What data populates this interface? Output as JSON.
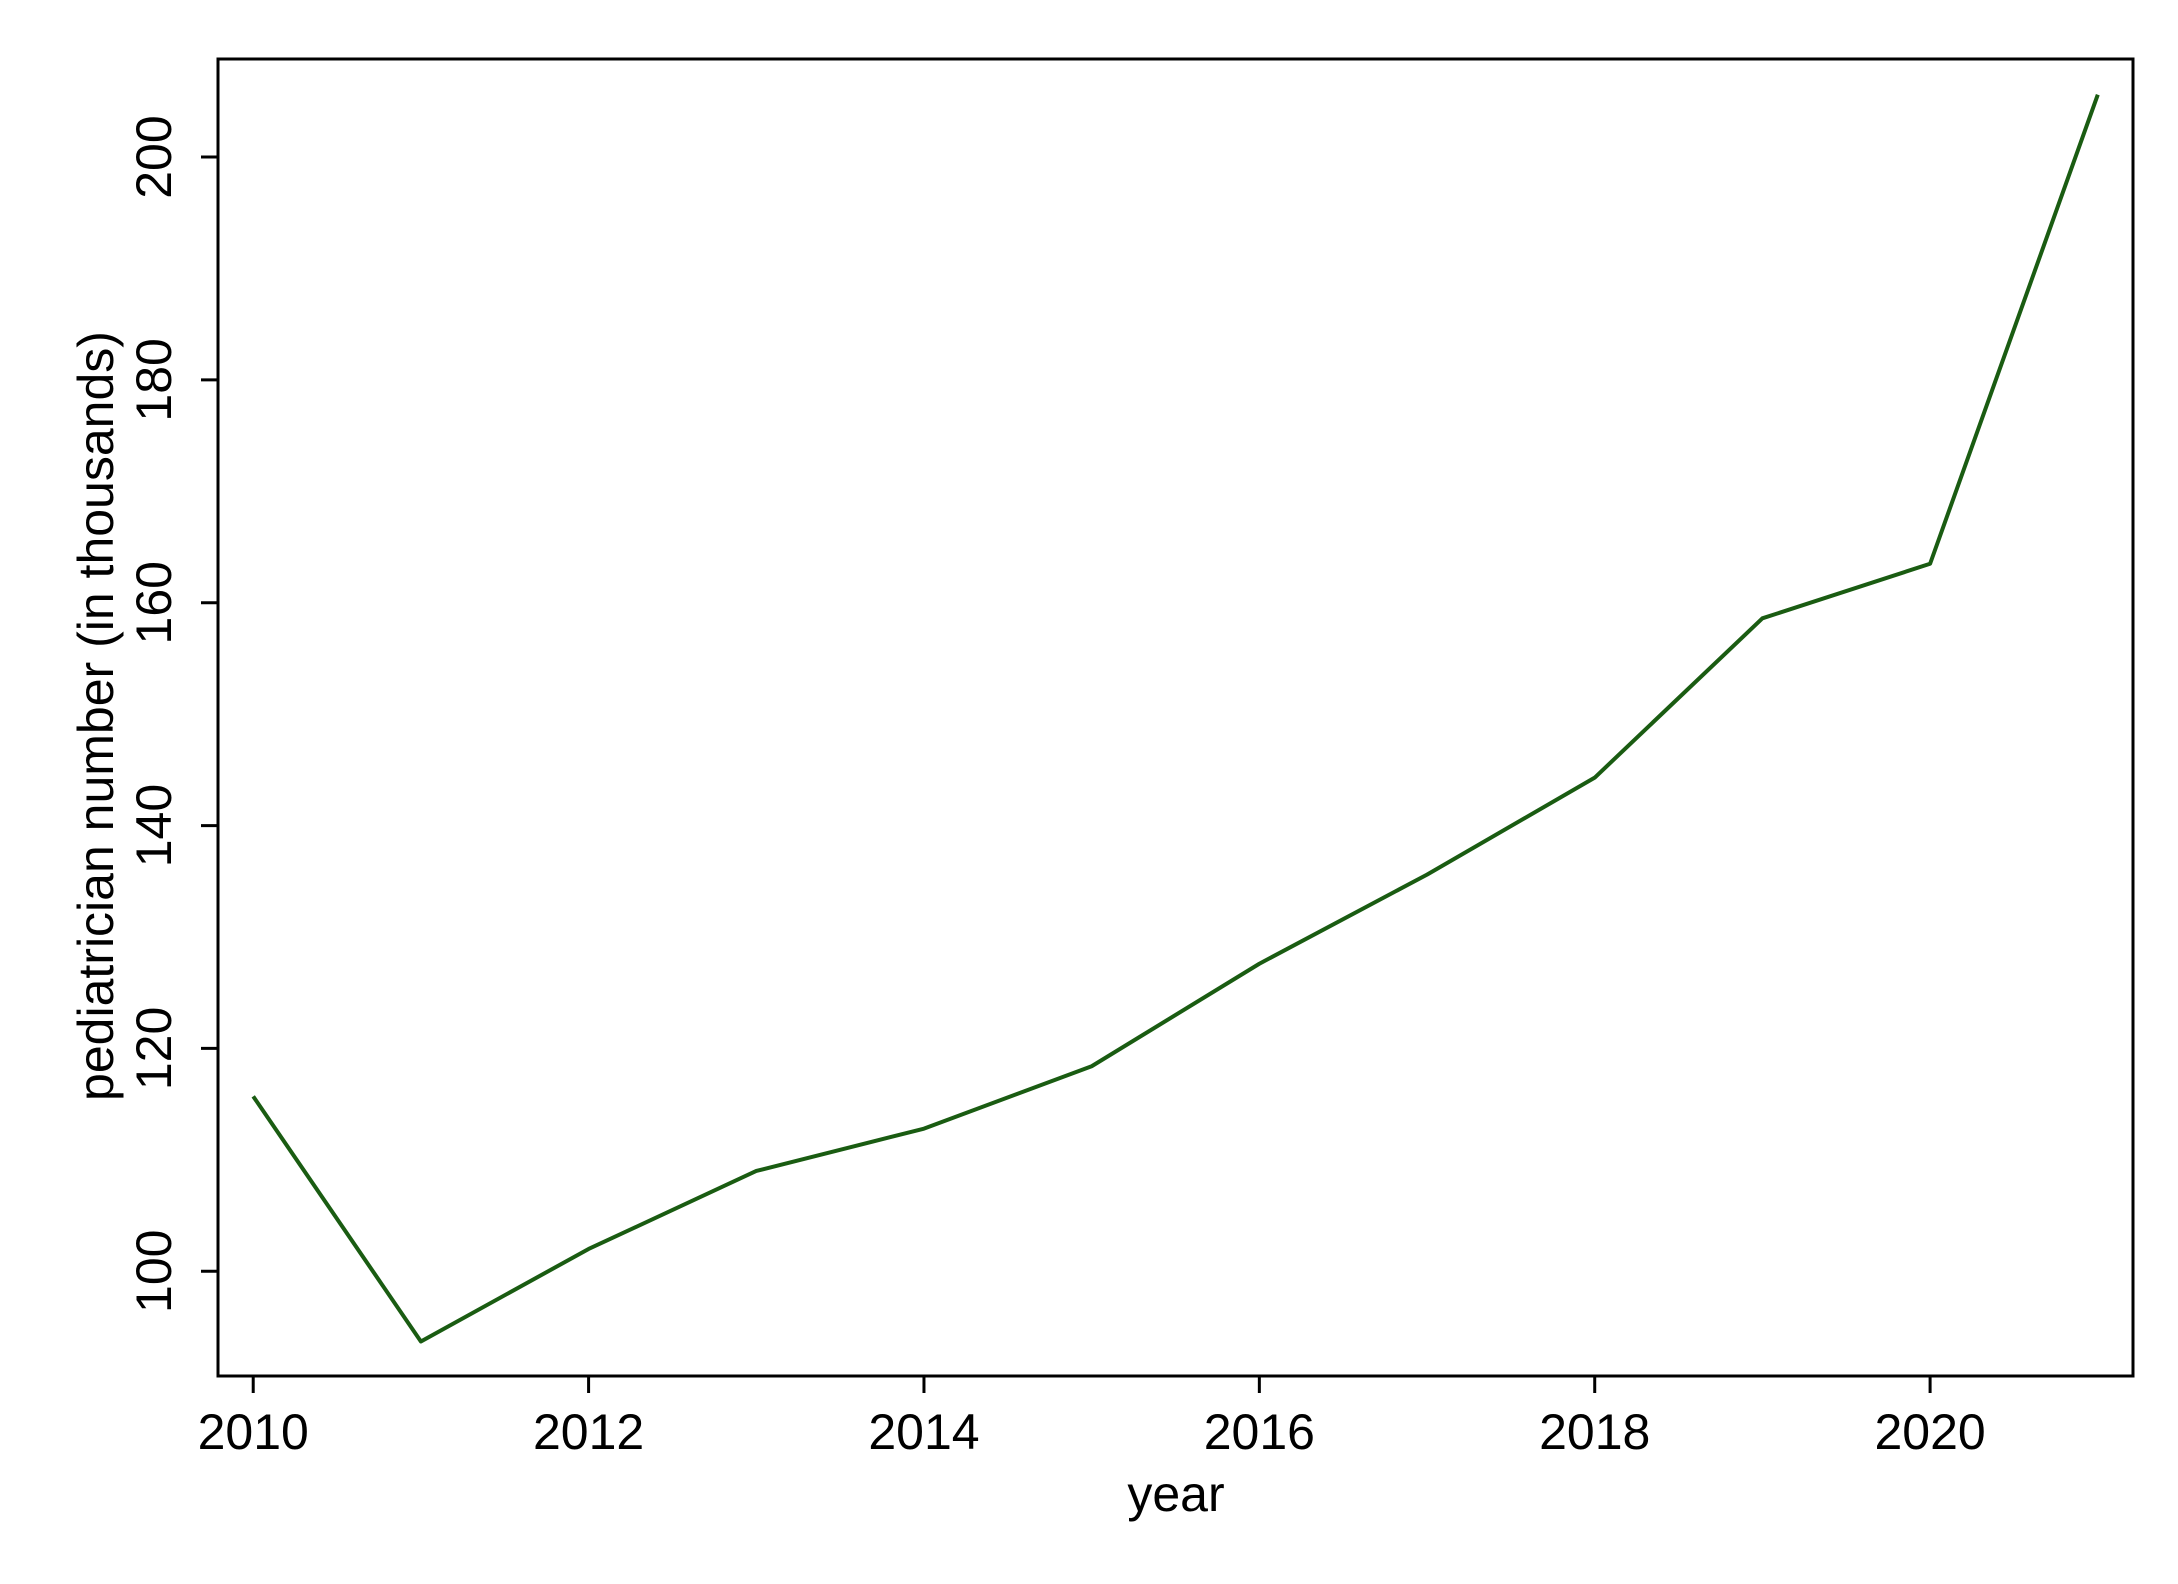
{
  "chart_data": {
    "type": "line",
    "x_label": "year",
    "y_label": "pediatrician number (in thousands)",
    "x": [
      2010,
      2011,
      2012,
      2013,
      2014,
      2015,
      2016,
      2017,
      2018,
      2019,
      2020,
      2021
    ],
    "series": [
      {
        "color": "#1a5c12",
        "values": [
          115.7,
          93.7,
          102.0,
          109.0,
          112.8,
          118.4,
          127.6,
          135.6,
          144.3,
          158.6,
          163.5,
          205.6
        ]
      }
    ],
    "xlim": [
      2009.79,
      2021.21
    ],
    "xticks": [
      2010,
      2012,
      2014,
      2016,
      2018,
      2020
    ],
    "ylim": [
      90.6,
      208.8
    ],
    "yticks": [
      100,
      120,
      140,
      160,
      180,
      200
    ],
    "grid": false
  }
}
